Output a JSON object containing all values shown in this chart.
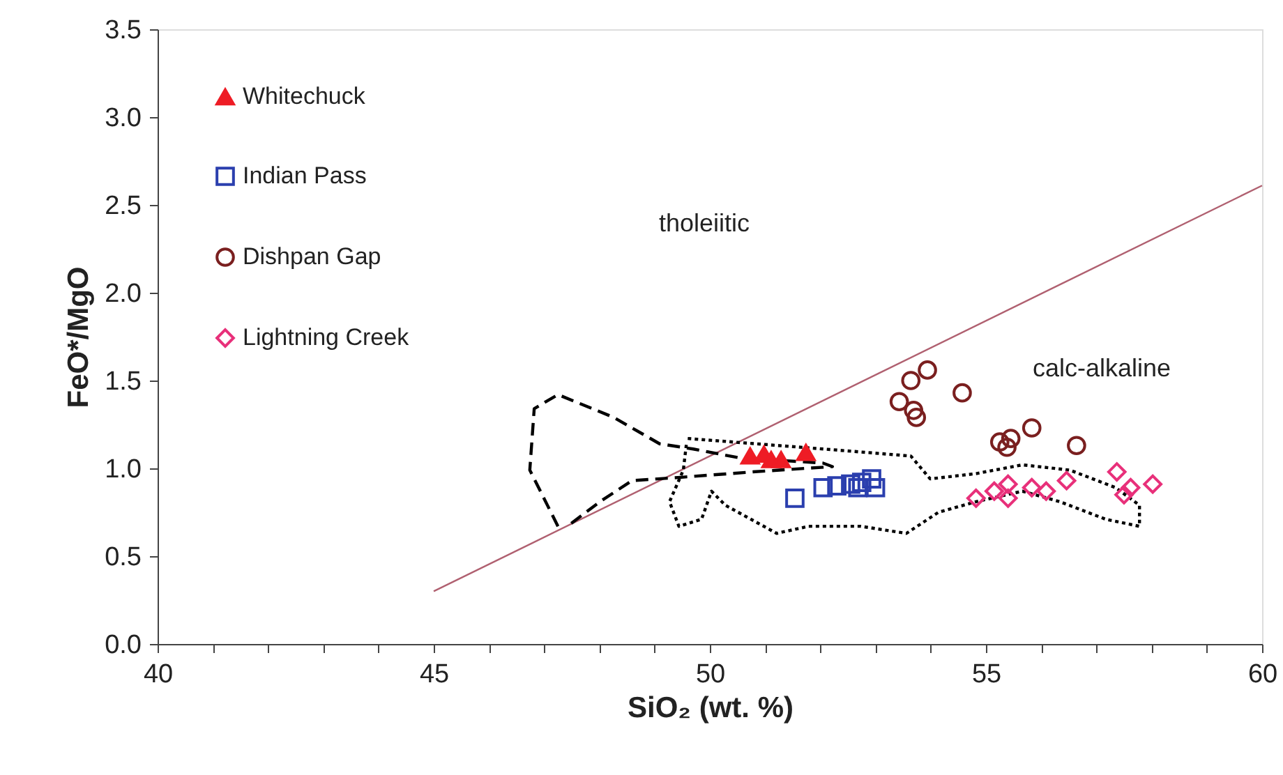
{
  "chart_data": {
    "type": "scatter",
    "xlabel": "SiO₂ (wt. %)",
    "ylabel": "FeO*/MgO",
    "xlim": [
      40,
      60
    ],
    "ylim": [
      0,
      3.5
    ],
    "xticks": [
      40,
      {
        "value": 41,
        "label": null
      },
      {
        "value": 42,
        "label": null
      },
      {
        "value": 43,
        "label": null
      },
      {
        "value": 44,
        "label": null
      },
      45,
      {
        "value": 46,
        "label": null
      },
      {
        "value": 47,
        "label": null
      },
      {
        "value": 48,
        "label": null
      },
      {
        "value": 49,
        "label": null
      },
      50,
      {
        "value": 51,
        "label": null
      },
      {
        "value": 52,
        "label": null
      },
      {
        "value": 53,
        "label": null
      },
      {
        "value": 54,
        "label": null
      },
      55,
      {
        "value": 56,
        "label": null
      },
      {
        "value": 57,
        "label": null
      },
      {
        "value": 58,
        "label": null
      },
      {
        "value": 59,
        "label": null
      },
      60
    ],
    "yticks": [
      {
        "value": 0,
        "label": "0.0"
      },
      0.5,
      {
        "value": 1,
        "label": "1.0"
      },
      1.5,
      {
        "value": 2,
        "label": "2.0"
      },
      2.5,
      {
        "value": 3,
        "label": "3.0"
      },
      3.5
    ],
    "grid": false,
    "legend": "top left",
    "annotations": [
      "tholeiitic",
      "calc-alkaline"
    ],
    "series": [
      {
        "name": "Whitechuck",
        "color": "#ee1c25",
        "marker": "triangle",
        "x": [
          50.73,
          50.98,
          51.11,
          51.29,
          51.74
        ],
        "values": [
          1.07,
          1.08,
          1.05,
          1.05,
          1.09
        ]
      },
      {
        "name": "Indian Pass",
        "color": "#2b3fae",
        "marker": "square",
        "x": [
          51.54,
          52.05,
          52.3,
          52.55,
          52.75,
          52.93,
          53.0,
          52.68
        ],
        "values": [
          0.83,
          0.89,
          0.9,
          0.91,
          0.92,
          0.94,
          0.89,
          0.89
        ]
      },
      {
        "name": "Dishpan Gap",
        "color": "#7a1f1f",
        "marker": "circle",
        "x": [
          53.94,
          53.64,
          53.43,
          53.69,
          53.74,
          54.57,
          55.25,
          55.45,
          55.38,
          55.83,
          56.64
        ],
        "values": [
          1.56,
          1.5,
          1.38,
          1.33,
          1.29,
          1.43,
          1.15,
          1.17,
          1.12,
          1.23,
          1.13
        ]
      },
      {
        "name": "Lightning Creek",
        "color": "#e8307a",
        "marker": "diamond",
        "x": [
          54.82,
          55.15,
          55.4,
          55.4,
          55.83,
          56.09,
          56.46,
          57.37,
          57.62,
          58.02,
          57.5
        ],
        "values": [
          0.83,
          0.87,
          0.91,
          0.83,
          0.89,
          0.87,
          0.93,
          0.98,
          0.89,
          0.91,
          0.85
        ]
      },
      {
        "type": "line",
        "color": "#b06070",
        "line_style": "solid",
        "x": [
          45,
          60
        ],
        "values": [
          0.3,
          2.61
        ]
      },
      {
        "type": "line",
        "color": "#000000",
        "line_style": "dashed",
        "x": [
          47.25,
          46.74,
          46.82,
          47.25,
          48.26,
          49.09,
          49.7,
          50.53,
          52.05,
          52.22,
          50.78,
          49.52,
          48.59,
          48.01,
          47.42
        ],
        "values": [
          0.67,
          0.99,
          1.34,
          1.42,
          1.29,
          1.14,
          1.11,
          1.06,
          1.03,
          1.01,
          0.98,
          0.95,
          0.93,
          0.81,
          0.67
        ]
      },
      {
        "type": "line",
        "color": "#000000",
        "line_style": "dotted",
        "x": [
          49.6,
          52.47,
          53.64,
          53.99,
          54.82,
          55.66,
          56.52,
          57.35,
          57.78,
          57.78,
          57.17,
          56.34,
          55.66,
          54.82,
          54.14,
          53.56,
          52.73,
          51.79,
          51.21,
          50.28,
          50.03,
          49.85,
          49.44,
          49.27,
          49.52,
          49.58
        ],
        "values": [
          1.17,
          1.1,
          1.07,
          0.94,
          0.97,
          1.02,
          0.99,
          0.89,
          0.79,
          0.67,
          0.71,
          0.81,
          0.87,
          0.81,
          0.75,
          0.63,
          0.67,
          0.67,
          0.63,
          0.79,
          0.87,
          0.71,
          0.67,
          0.81,
          0.99,
          1.15
        ]
      }
    ]
  }
}
